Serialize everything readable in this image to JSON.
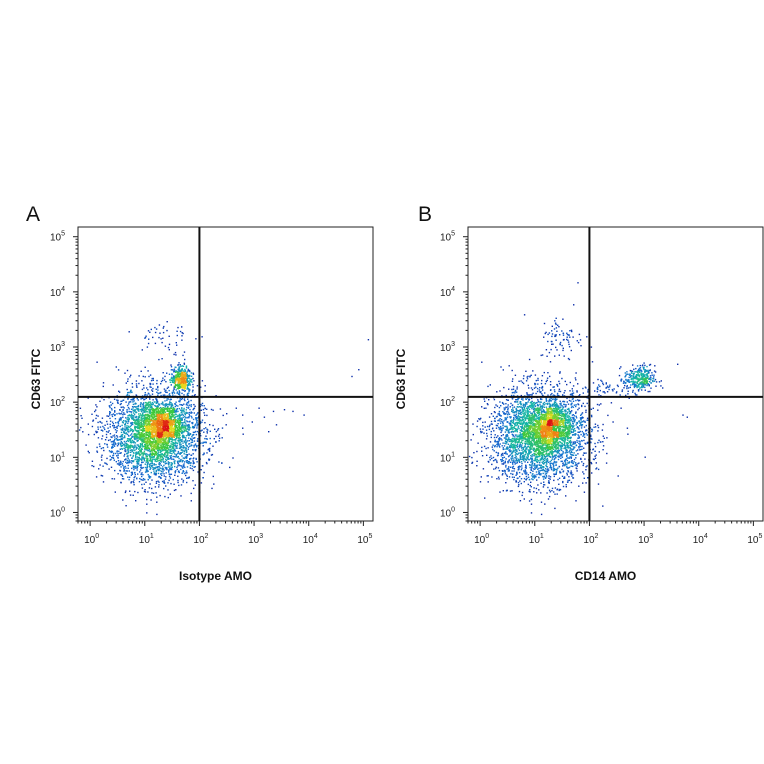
{
  "chart_data": [
    {
      "type": "scatter",
      "panel_label": "A",
      "xlabel": "Isotype AMO",
      "ylabel": "CD63 FITC",
      "x_scale": "log",
      "y_scale": "log",
      "xlim": [
        0.6,
        150000
      ],
      "ylim": [
        0.7,
        150000
      ],
      "x_ticks": [
        1,
        10,
        100,
        1000,
        10000,
        100000
      ],
      "y_ticks": [
        1,
        10,
        100,
        1000,
        10000,
        100000
      ],
      "tick_base": "10",
      "tick_exponents": [
        "0",
        "1",
        "2",
        "3",
        "4",
        "5"
      ],
      "quadrant_gate": {
        "x": 100,
        "y": 125
      },
      "coloring": "density (blue low → green → yellow → red high)",
      "populations": [
        {
          "name": "main",
          "center": [
            15,
            25
          ],
          "spread_log10": [
            0.45,
            0.42
          ],
          "count": 3200
        },
        {
          "name": "dense core",
          "center": [
            20,
            40
          ],
          "spread_log10": [
            0.18,
            0.18
          ],
          "count": 700
        },
        {
          "name": "upper cluster",
          "center": [
            45,
            270
          ],
          "spread_log10": [
            0.09,
            0.12
          ],
          "count": 420
        },
        {
          "name": "sparse top",
          "center": [
            20,
            1500
          ],
          "spread_log10": [
            0.25,
            0.2
          ],
          "count": 50
        }
      ],
      "outliers": [
        [
          1200,
          80
        ],
        [
          1500,
          55
        ],
        [
          2500,
          40
        ],
        [
          600,
          60
        ],
        [
          3500,
          75
        ],
        [
          5000,
          70
        ],
        [
          300,
          40
        ],
        [
          8000,
          60
        ],
        [
          60000,
          300
        ],
        [
          80000,
          400
        ],
        [
          120000,
          1400
        ],
        [
          400,
          10
        ],
        [
          1800,
          30
        ],
        [
          2200,
          70
        ],
        [
          900,
          45
        ]
      ]
    },
    {
      "type": "scatter",
      "panel_label": "B",
      "xlabel": "CD14 AMO",
      "ylabel": "CD63 FITC",
      "x_scale": "log",
      "y_scale": "log",
      "xlim": [
        0.6,
        150000
      ],
      "ylim": [
        0.7,
        150000
      ],
      "x_ticks": [
        1,
        10,
        100,
        1000,
        10000,
        100000
      ],
      "y_ticks": [
        1,
        10,
        100,
        1000,
        10000,
        100000
      ],
      "tick_base": "10",
      "tick_exponents": [
        "0",
        "1",
        "2",
        "3",
        "4",
        "5"
      ],
      "quadrant_gate": {
        "x": 100,
        "y": 125
      },
      "coloring": "density (blue low → green → yellow → red high)",
      "populations": [
        {
          "name": "main",
          "center": [
            12,
            25
          ],
          "spread_log10": [
            0.45,
            0.42
          ],
          "count": 3300
        },
        {
          "name": "dense core",
          "center": [
            20,
            40
          ],
          "spread_log10": [
            0.18,
            0.18
          ],
          "count": 700
        },
        {
          "name": "CD14+ cluster",
          "center": [
            800,
            270
          ],
          "spread_log10": [
            0.14,
            0.12
          ],
          "count": 320
        },
        {
          "name": "bridge",
          "center": [
            200,
            180
          ],
          "spread_log10": [
            0.3,
            0.1
          ],
          "count": 60
        },
        {
          "name": "sparse top",
          "center": [
            30,
            1500
          ],
          "spread_log10": [
            0.2,
            0.2
          ],
          "count": 80
        }
      ],
      "outliers": [
        [
          60,
          15000
        ],
        [
          50,
          6000
        ],
        [
          5000,
          60
        ],
        [
          4000,
          500
        ],
        [
          6000,
          55
        ]
      ]
    }
  ]
}
